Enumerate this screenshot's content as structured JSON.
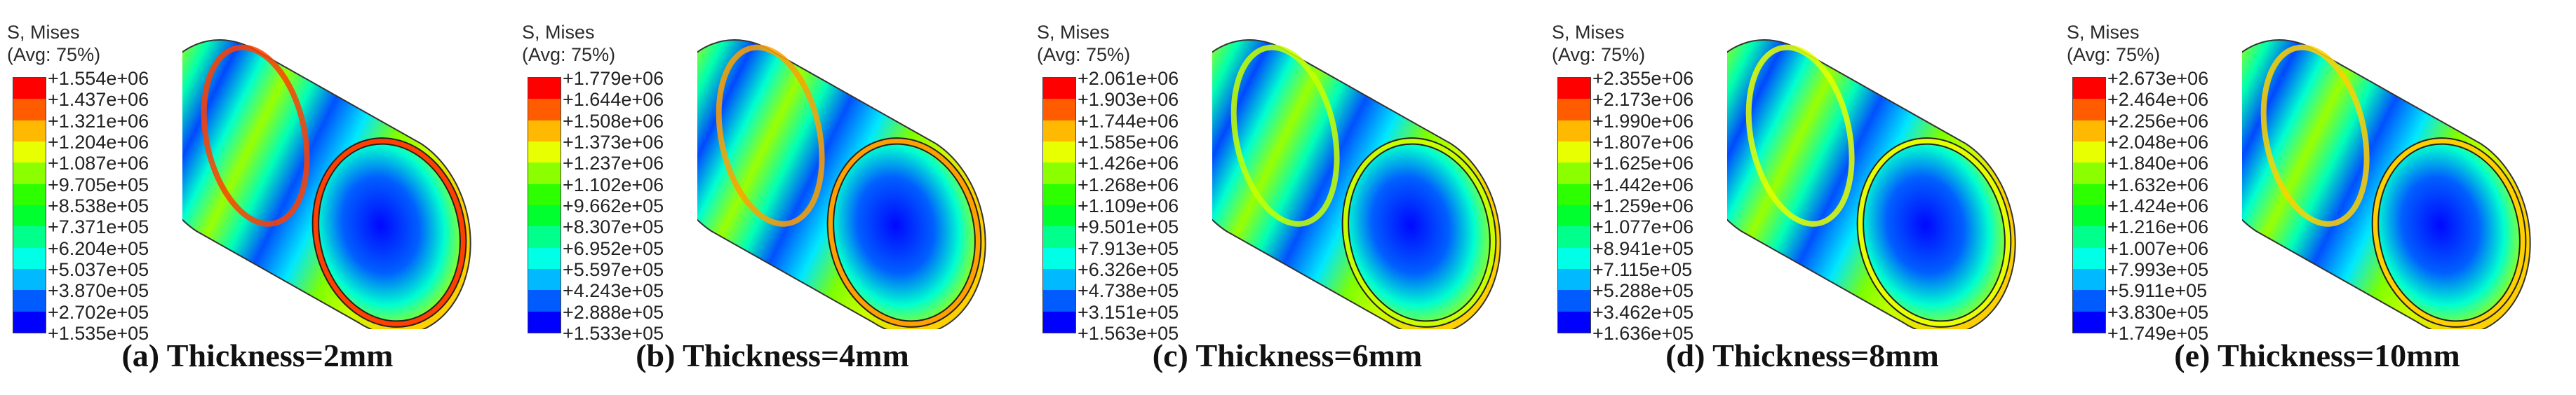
{
  "legend_title": "S, Mises\n(Avg: 75%)",
  "colors": {
    "contour_scale": [
      "#ff0000",
      "#ff5c00",
      "#ffb900",
      "#e7ff00",
      "#8bff00",
      "#2eff00",
      "#00ff2e",
      "#00ff8b",
      "#00ffe7",
      "#00b9ff",
      "#005cff",
      "#0000ff"
    ],
    "background": "#ffffff"
  },
  "panels": [
    {
      "caption": "(a) Thickness=2mm",
      "legend_values": [
        "+1.554e+06",
        "+1.437e+06",
        "+1.321e+06",
        "+1.204e+06",
        "+1.087e+06",
        "+9.705e+05",
        "+8.538e+05",
        "+7.371e+05",
        "+6.204e+05",
        "+5.037e+05",
        "+3.870e+05",
        "+2.702e+05",
        "+1.535e+05"
      ],
      "rim_color": "#ff4000"
    },
    {
      "caption": "(b) Thickness=4mm",
      "legend_values": [
        "+1.779e+06",
        "+1.644e+06",
        "+1.508e+06",
        "+1.373e+06",
        "+1.237e+06",
        "+1.102e+06",
        "+9.662e+05",
        "+8.307e+05",
        "+6.952e+05",
        "+5.597e+05",
        "+4.243e+05",
        "+2.888e+05",
        "+1.533e+05"
      ],
      "rim_color": "#ffa000"
    },
    {
      "caption": "(c) Thickness=6mm",
      "legend_values": [
        "+2.061e+06",
        "+1.903e+06",
        "+1.744e+06",
        "+1.585e+06",
        "+1.426e+06",
        "+1.268e+06",
        "+1.109e+06",
        "+9.501e+05",
        "+7.913e+05",
        "+6.326e+05",
        "+4.738e+05",
        "+3.151e+05",
        "+1.563e+05"
      ],
      "rim_color": "#c8ff00"
    },
    {
      "caption": "(d) Thickness=8mm",
      "legend_values": [
        "+2.355e+06",
        "+2.173e+06",
        "+1.990e+06",
        "+1.807e+06",
        "+1.625e+06",
        "+1.442e+06",
        "+1.259e+06",
        "+1.077e+06",
        "+8.941e+05",
        "+7.115e+05",
        "+5.288e+05",
        "+3.462e+05",
        "+1.636e+05"
      ],
      "rim_color": "#e6ff00"
    },
    {
      "caption": "(e) Thickness=10mm",
      "legend_values": [
        "+2.673e+06",
        "+2.464e+06",
        "+2.256e+06",
        "+2.048e+06",
        "+1.840e+06",
        "+1.632e+06",
        "+1.424e+06",
        "+1.216e+06",
        "+1.007e+06",
        "+7.993e+05",
        "+5.911e+05",
        "+3.830e+05",
        "+1.749e+05"
      ],
      "rim_color": "#ffd000"
    }
  ]
}
